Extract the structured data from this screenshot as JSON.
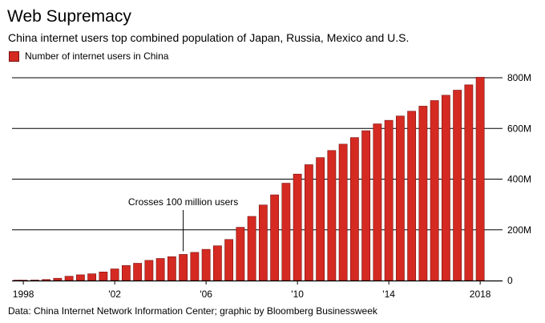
{
  "title": "Web Supremacy",
  "subtitle": "China internet users top combined population of Japan, Russia, Mexico and U.S.",
  "source": "Data: China Internet Network Information Center; graphic by Bloomberg Businessweek",
  "colors": {
    "bar": "#d42a22",
    "bar_border": "#7a1010",
    "grid": "#000000"
  },
  "chart_data": {
    "type": "bar",
    "legend": [
      "Number of internet users in China"
    ],
    "legend_position": "top-left",
    "grid": true,
    "y_axis_side": "right",
    "ylim": [
      0,
      800
    ],
    "yticks": [
      0,
      200,
      400,
      600,
      800
    ],
    "ytick_labels": [
      "0",
      "200M",
      "400M",
      "600M",
      "800M"
    ],
    "xtick_labels": [
      {
        "label": "1998",
        "x": 1998.0
      },
      {
        "label": "'02",
        "x": 2002.0
      },
      {
        "label": "'06",
        "x": 2006.0
      },
      {
        "label": "'10",
        "x": 2010.0
      },
      {
        "label": "'14",
        "x": 2014.0
      },
      {
        "label": "2018",
        "x": 2018.0
      }
    ],
    "xlim": [
      1997.75,
      2018.25
    ],
    "series": [
      {
        "name": "Number of internet users in China",
        "x": [
          1997.75,
          1998.0,
          1998.5,
          1999.0,
          1999.5,
          2000.0,
          2000.5,
          2001.0,
          2001.5,
          2002.0,
          2002.5,
          2003.0,
          2003.5,
          2004.0,
          2004.5,
          2005.0,
          2005.5,
          2006.0,
          2006.5,
          2007.0,
          2007.5,
          2008.0,
          2008.5,
          2009.0,
          2009.5,
          2010.0,
          2010.5,
          2011.0,
          2011.5,
          2012.0,
          2012.5,
          2013.0,
          2013.5,
          2014.0,
          2014.5,
          2015.0,
          2015.5,
          2016.0,
          2016.5,
          2017.0,
          2017.5,
          2018.0
        ],
        "values": [
          0.6,
          1.2,
          2.1,
          4,
          8.9,
          16.9,
          22.5,
          26.5,
          33.7,
          45.8,
          59.1,
          68,
          79.5,
          87,
          94,
          103,
          111,
          123,
          137,
          162,
          210,
          253,
          298,
          338,
          384,
          420,
          457,
          485,
          513,
          538,
          564,
          591,
          618,
          632,
          649,
          668,
          688,
          710,
          731,
          751,
          772,
          802
        ]
      }
    ],
    "annotations": [
      {
        "text": "Crosses 100 million users",
        "x": 2005.0,
        "y": 103
      }
    ]
  }
}
